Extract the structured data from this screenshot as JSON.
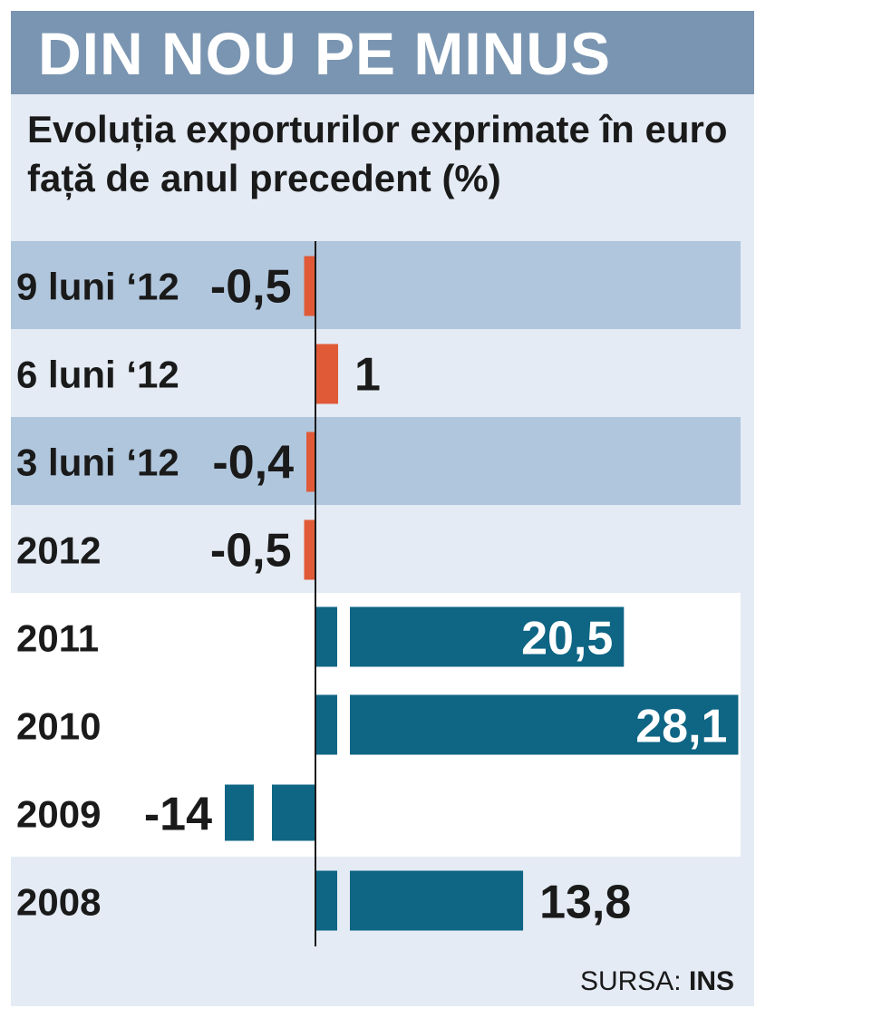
{
  "title": "DIN NOU PE MINUS",
  "subtitle": "Evoluția exporturilor exprimate în euro față de anul precedent (%)",
  "source_prefix": "SURSA:",
  "source_name": "INS",
  "colors": {
    "negative_recent": "#e05a37",
    "annual": "#0e6584",
    "header": "#7a95b1",
    "row_highlight": "#b0c6dd",
    "row_light": "#e4ebf4",
    "row_white": "#ffffff"
  },
  "chart_data": {
    "type": "bar",
    "orientation": "horizontal",
    "title": "DIN NOU PE MINUS",
    "subtitle": "Evoluția exporturilor exprimate în euro față de anul precedent (%)",
    "categories": [
      "9 luni ‘12",
      "6 luni ‘12",
      "3 luni ‘12",
      "2012",
      "2011",
      "2010",
      "2009",
      "2008"
    ],
    "values": [
      -0.5,
      1,
      -0.4,
      -0.5,
      20.5,
      28.1,
      -14,
      13.8
    ],
    "value_labels": [
      "-0,5",
      "1",
      "-0,4",
      "-0,5",
      "20,5",
      "28,1",
      "-14",
      "13,8"
    ],
    "bar_colors": [
      "#e05a37",
      "#e05a37",
      "#e05a37",
      "#e05a37",
      "#0e6584",
      "#0e6584",
      "#0e6584",
      "#0e6584"
    ],
    "row_backgrounds": [
      "#b0c6dd",
      "#e4ebf4",
      "#b0c6dd",
      "#e4ebf4",
      "#ffffff",
      "#ffffff",
      "#ffffff",
      "#e4ebf4"
    ],
    "broken_axis": [
      false,
      false,
      false,
      false,
      true,
      true,
      true,
      true
    ],
    "label_inside": [
      false,
      false,
      false,
      false,
      true,
      true,
      false,
      false
    ],
    "xlabel": "",
    "ylabel": "",
    "grid": false,
    "legend": "none"
  }
}
